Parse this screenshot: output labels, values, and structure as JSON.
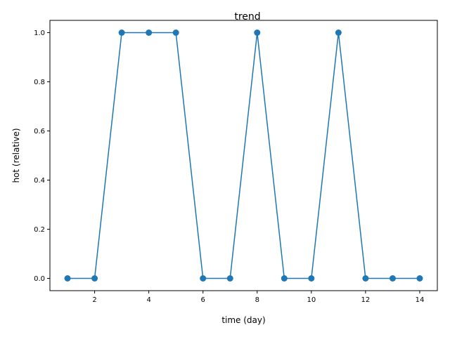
{
  "chart_data": {
    "type": "line",
    "title": "trend",
    "xlabel": "time (day)",
    "ylabel": "hot (relative)",
    "x": [
      1,
      2,
      3,
      4,
      5,
      6,
      7,
      8,
      9,
      10,
      11,
      12,
      13,
      14
    ],
    "series": [
      {
        "values": [
          0,
          0,
          1,
          1,
          1,
          0,
          0,
          1,
          0,
          0,
          1,
          0,
          0,
          0
        ],
        "color": "#1f77b4",
        "marker": "circle"
      }
    ],
    "xlim": [
      0.35,
      14.65
    ],
    "ylim": [
      -0.05,
      1.05
    ],
    "xticks": [
      2,
      4,
      6,
      8,
      10,
      12,
      14
    ],
    "xtick_labels": [
      "2",
      "4",
      "6",
      "8",
      "10",
      "12",
      "14"
    ],
    "yticks": [
      0.0,
      0.2,
      0.4,
      0.6,
      0.8,
      1.0
    ],
    "ytick_labels": [
      "0.0",
      "0.2",
      "0.4",
      "0.6",
      "0.8",
      "1.0"
    ],
    "grid": false,
    "legend": false
  }
}
